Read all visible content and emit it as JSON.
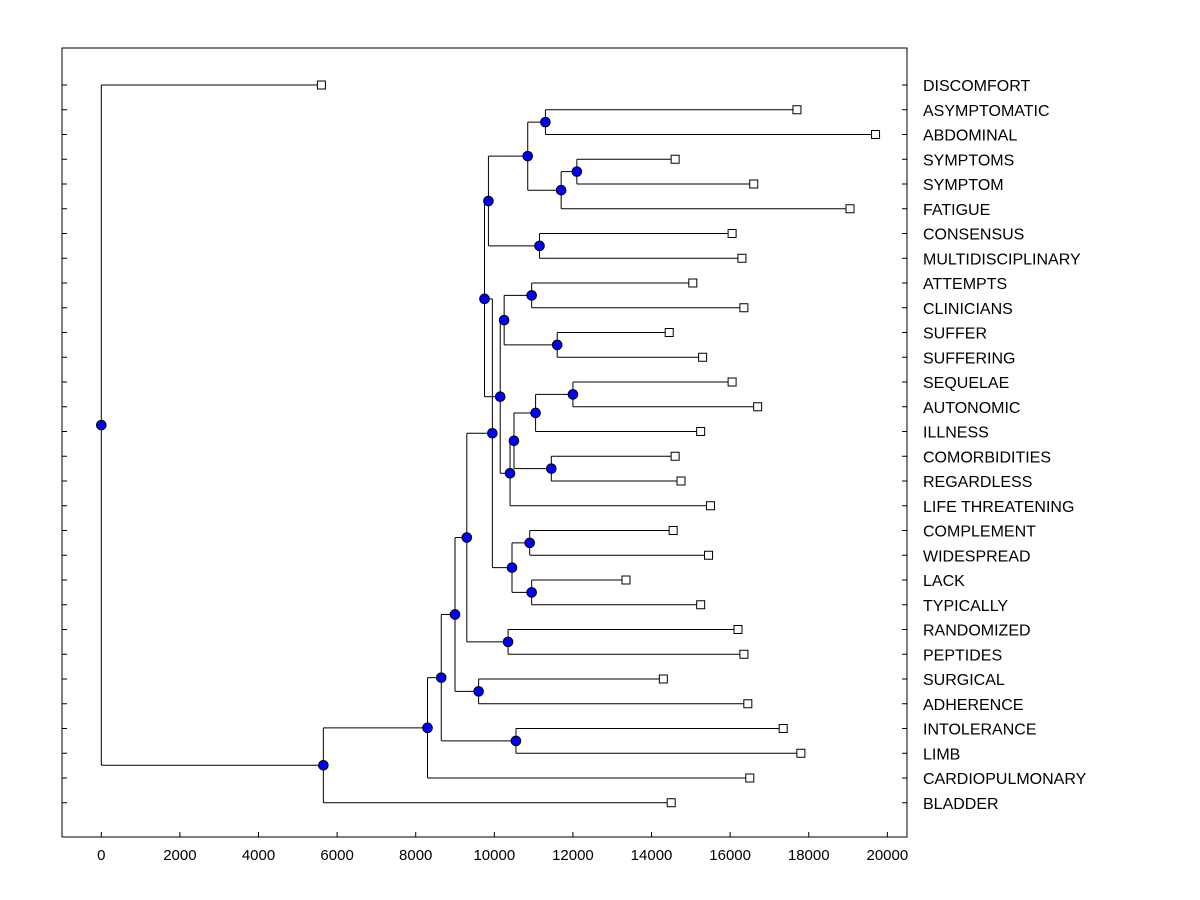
{
  "chart_data": {
    "type": "dendrogram",
    "orientation": "horizontal",
    "xlim": [
      -1000,
      20500
    ],
    "xticks": [
      0,
      2000,
      4000,
      6000,
      8000,
      10000,
      12000,
      14000,
      16000,
      18000,
      20000
    ],
    "xtick_labels": [
      "0",
      "2000",
      "4000",
      "6000",
      "8000",
      "10000",
      "12000",
      "14000",
      "16000",
      "18000",
      "20000"
    ],
    "colors": {
      "node": "#0000ff",
      "line": "#000000",
      "leaf_marker": "#ffffff"
    },
    "leaves": [
      {
        "label": "DISCOMFORT",
        "value": 5600
      },
      {
        "label": "ASYMPTOMATIC",
        "value": 17700
      },
      {
        "label": "ABDOMINAL",
        "value": 19700
      },
      {
        "label": "SYMPTOMS",
        "value": 14600
      },
      {
        "label": "SYMPTOM",
        "value": 16600
      },
      {
        "label": "FATIGUE",
        "value": 19050
      },
      {
        "label": "CONSENSUS",
        "value": 16050
      },
      {
        "label": "MULTIDISCIPLINARY",
        "value": 16300
      },
      {
        "label": "ATTEMPTS",
        "value": 15050
      },
      {
        "label": "CLINICIANS",
        "value": 16350
      },
      {
        "label": "SUFFER",
        "value": 14450
      },
      {
        "label": "SUFFERING",
        "value": 15300
      },
      {
        "label": "SEQUELAE",
        "value": 16050
      },
      {
        "label": "AUTONOMIC",
        "value": 16700
      },
      {
        "label": "ILLNESS",
        "value": 15250
      },
      {
        "label": "COMORBIDITIES",
        "value": 14600
      },
      {
        "label": "REGARDLESS",
        "value": 14750
      },
      {
        "label": "LIFE THREATENING",
        "value": 15500
      },
      {
        "label": "COMPLEMENT",
        "value": 14550
      },
      {
        "label": "WIDESPREAD",
        "value": 15450
      },
      {
        "label": "LACK",
        "value": 13350
      },
      {
        "label": "TYPICALLY",
        "value": 15250
      },
      {
        "label": "RANDOMIZED",
        "value": 16200
      },
      {
        "label": "PEPTIDES",
        "value": 16350
      },
      {
        "label": "SURGICAL",
        "value": 14300
      },
      {
        "label": "ADHERENCE",
        "value": 16450
      },
      {
        "label": "INTOLERANCE",
        "value": 17350
      },
      {
        "label": "LIMB",
        "value": 17800
      },
      {
        "label": "CARDIOPULMONARY",
        "value": 16500
      },
      {
        "label": "BLADDER",
        "value": 14500
      }
    ],
    "merges": [
      {
        "id": "n1",
        "value": 11300,
        "children": [
          "ASYMPTOMATIC",
          "ABDOMINAL"
        ]
      },
      {
        "id": "n2",
        "value": 12100,
        "children": [
          "SYMPTOMS",
          "SYMPTOM"
        ]
      },
      {
        "id": "n3",
        "value": 11700,
        "children": [
          "n2",
          "FATIGUE"
        ]
      },
      {
        "id": "n4",
        "value": 10850,
        "children": [
          "n1",
          "n3"
        ]
      },
      {
        "id": "n5",
        "value": 11150,
        "children": [
          "CONSENSUS",
          "MULTIDISCIPLINARY"
        ]
      },
      {
        "id": "n6",
        "value": 9850,
        "children": [
          "n4",
          "n5"
        ]
      },
      {
        "id": "n7",
        "value": 10950,
        "children": [
          "ATTEMPTS",
          "CLINICIANS"
        ]
      },
      {
        "id": "n8",
        "value": 11600,
        "children": [
          "SUFFER",
          "SUFFERING"
        ]
      },
      {
        "id": "n9",
        "value": 10250,
        "children": [
          "n7",
          "n8"
        ]
      },
      {
        "id": "n10",
        "value": 12000,
        "children": [
          "SEQUELAE",
          "AUTONOMIC"
        ]
      },
      {
        "id": "n11",
        "value": 11050,
        "children": [
          "n10",
          "ILLNESS"
        ]
      },
      {
        "id": "n12",
        "value": 11450,
        "children": [
          "COMORBIDITIES",
          "REGARDLESS"
        ]
      },
      {
        "id": "n13",
        "value": 10500,
        "children": [
          "n11",
          "n12"
        ]
      },
      {
        "id": "n14",
        "value": 10400,
        "children": [
          "n13",
          "LIFE THREATENING"
        ]
      },
      {
        "id": "n15",
        "value": 10150,
        "children": [
          "n9",
          "n14"
        ]
      },
      {
        "id": "n16",
        "value": 9750,
        "children": [
          "n6",
          "n15"
        ]
      },
      {
        "id": "n17",
        "value": 10900,
        "children": [
          "COMPLEMENT",
          "WIDESPREAD"
        ]
      },
      {
        "id": "n18",
        "value": 10950,
        "children": [
          "LACK",
          "TYPICALLY"
        ]
      },
      {
        "id": "n19",
        "value": 10450,
        "children": [
          "n17",
          "n18"
        ]
      },
      {
        "id": "n20",
        "value": 9950,
        "children": [
          "n16",
          "n19"
        ]
      },
      {
        "id": "n21",
        "value": 10350,
        "children": [
          "RANDOMIZED",
          "PEPTIDES"
        ]
      },
      {
        "id": "n22",
        "value": 9300,
        "children": [
          "n20",
          "n21"
        ]
      },
      {
        "id": "n23",
        "value": 9600,
        "children": [
          "SURGICAL",
          "ADHERENCE"
        ]
      },
      {
        "id": "n24",
        "value": 9000,
        "children": [
          "n22",
          "n23"
        ]
      },
      {
        "id": "n25",
        "value": 10550,
        "children": [
          "INTOLERANCE",
          "LIMB"
        ]
      },
      {
        "id": "n26",
        "value": 8650,
        "children": [
          "n24",
          "n25"
        ]
      },
      {
        "id": "n27",
        "value": 8300,
        "children": [
          "n26",
          "CARDIOPULMONARY"
        ]
      },
      {
        "id": "n28",
        "value": 5650,
        "children": [
          "n27",
          "BLADDER"
        ]
      },
      {
        "id": "n29",
        "value": 0,
        "children": [
          "DISCOMFORT",
          "n28"
        ]
      }
    ]
  }
}
